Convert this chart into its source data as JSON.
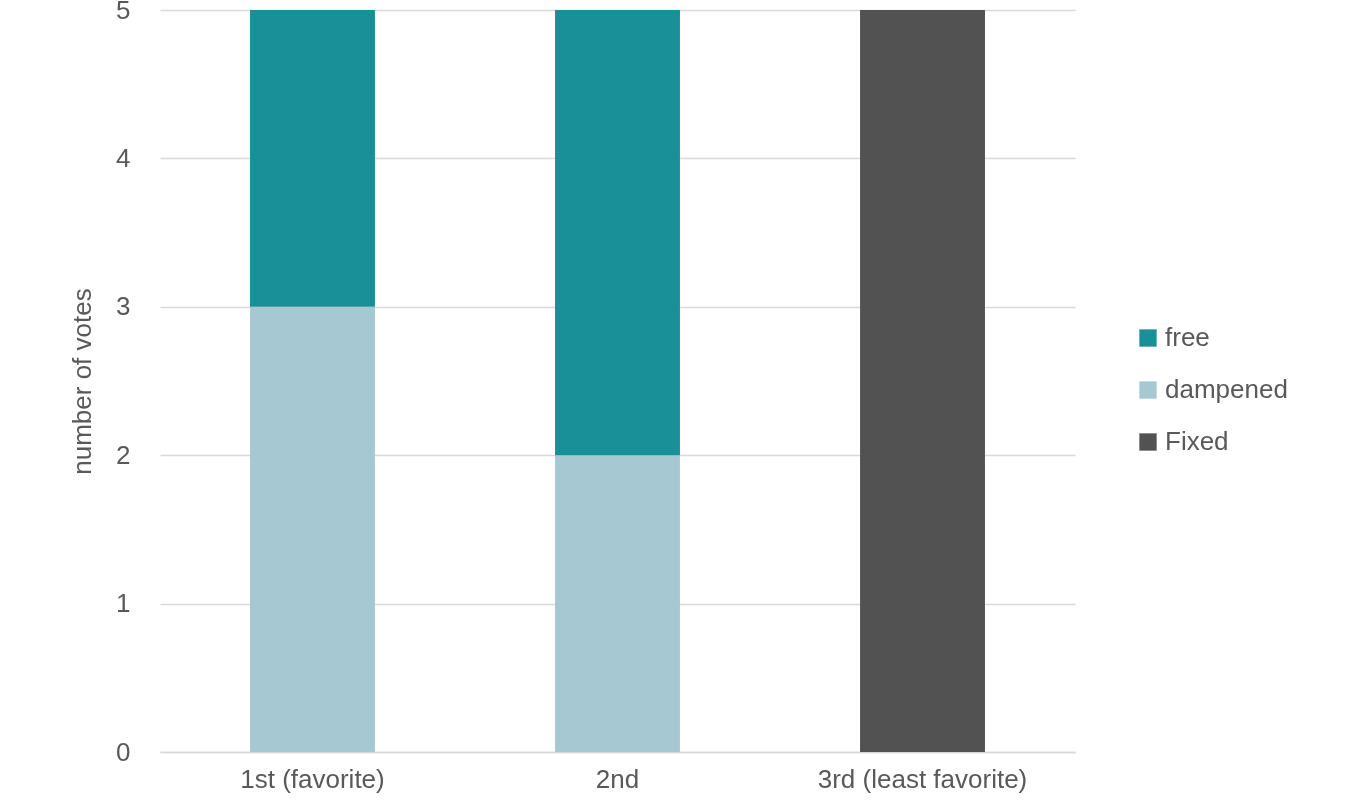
{
  "chart_data": {
    "type": "bar",
    "stacked": true,
    "ylabel": "number of votes",
    "categories": [
      "1st (favorite)",
      "2nd",
      "3rd (least favorite)"
    ],
    "series": [
      {
        "name": "Fixed",
        "color": "#525252",
        "values": [
          0,
          0,
          5
        ]
      },
      {
        "name": "dampened",
        "color": "#a5c8d2",
        "values": [
          3,
          2,
          0
        ]
      },
      {
        "name": "free",
        "color": "#199097",
        "values": [
          2,
          3,
          0
        ]
      }
    ],
    "ylim": [
      0,
      5
    ],
    "yticks": [
      0,
      1,
      2,
      3,
      4,
      5
    ],
    "grid": "y",
    "legend": "right"
  }
}
